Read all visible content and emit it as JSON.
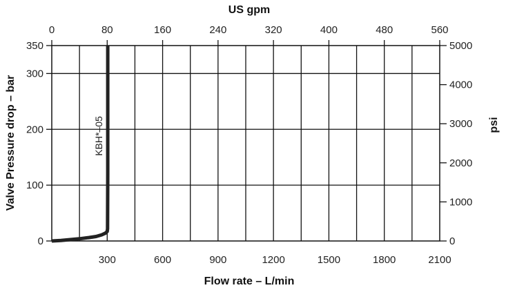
{
  "chart_data": {
    "type": "line",
    "xlabel": "Flow rate – L/min",
    "ylabel": "Valve Pressure drop – bar",
    "top_axis_label": "US gpm",
    "right_axis_label": "psi",
    "xlim": [
      0,
      2100
    ],
    "ylim": [
      0,
      350
    ],
    "top_xlim": [
      0,
      560
    ],
    "right_ylim": [
      0,
      5000
    ],
    "x_ticks": [
      "300",
      "600",
      "900",
      "1200",
      "1500",
      "1800",
      "2100"
    ],
    "y_ticks": [
      "0",
      "100",
      "200",
      "300",
      "350"
    ],
    "top_ticks": [
      "0",
      "80",
      "160",
      "240",
      "320",
      "400",
      "480",
      "560"
    ],
    "right_ticks": [
      "0",
      "1000",
      "2000",
      "3000",
      "4000",
      "5000"
    ],
    "grid": true,
    "series": [
      {
        "name": "KBH*–05",
        "x": [
          0,
          50,
          100,
          150,
          200,
          240,
          270,
          290,
          300,
          302,
          303,
          303
        ],
        "y": [
          0,
          1,
          2.5,
          4,
          6,
          8,
          11,
          14,
          17,
          22,
          120,
          350
        ]
      }
    ]
  }
}
